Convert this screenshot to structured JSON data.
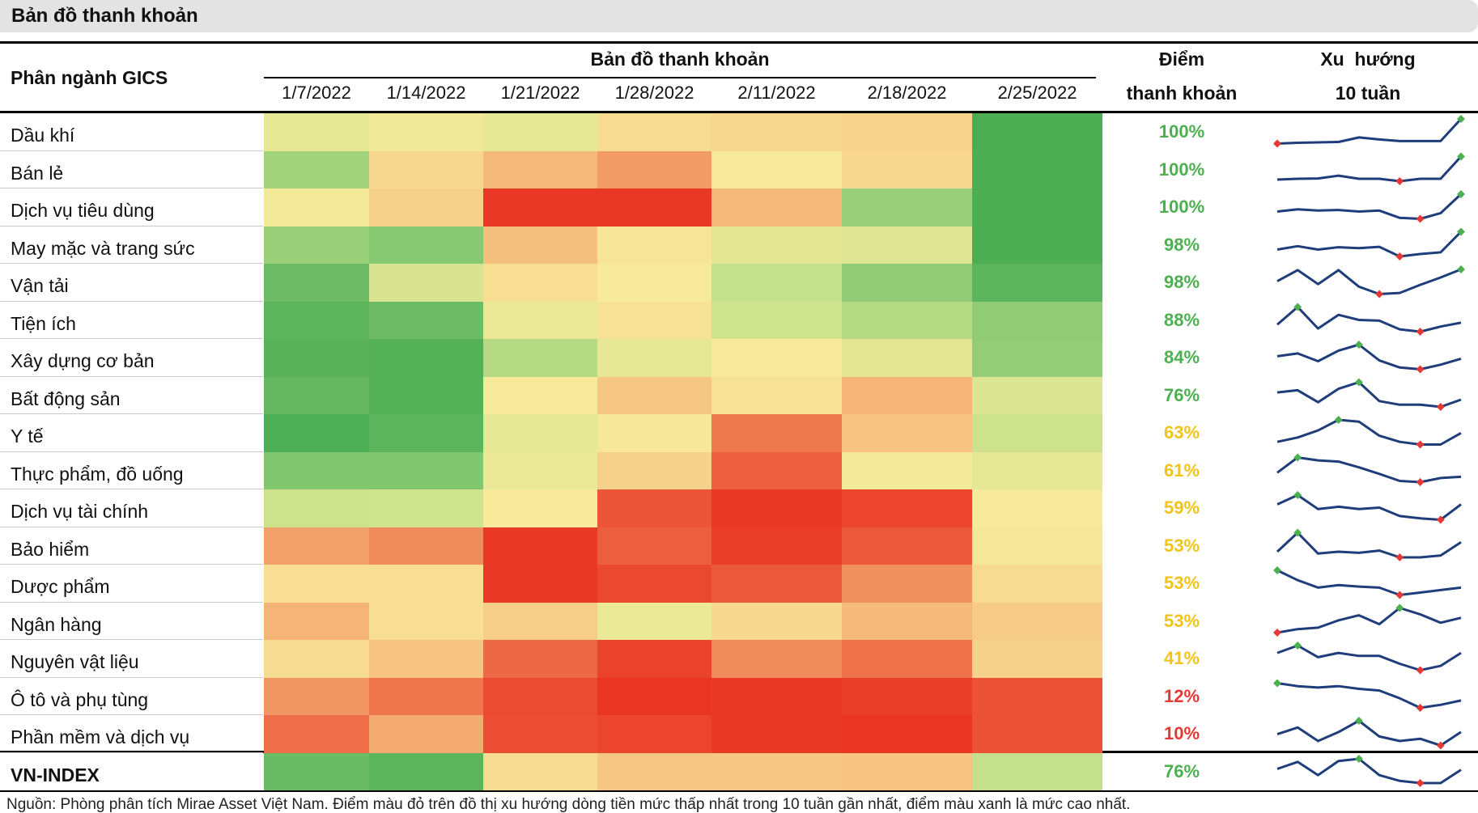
{
  "title": "Bản đồ thanh khoản",
  "headers": {
    "sector": "Phân ngành GICS",
    "heatmap": "Bản đồ thanh khoản",
    "score_line1": "Điểm",
    "score_line2": "thanh khoản",
    "trend_line1": "Xu  hướng",
    "trend_line2": "10 tuần"
  },
  "colors": {
    "score_green": "#4caf50",
    "score_yellow": "#f0c419",
    "score_red": "#e53935",
    "spark_line": "#1f3d7a",
    "min_marker": "#e53935",
    "max_marker": "#4caf50"
  },
  "source": "Nguồn: Phòng phân tích Mirae Asset Việt Nam. Điểm màu đỏ trên đồ thị xu hướng dòng tiền mức thấp nhất trong 10 tuần gần nhất, điểm màu xanh là mức cao nhất.",
  "chart_data": {
    "type": "heatmap",
    "title": "Bản đồ thanh khoản",
    "columns": [
      "1/7/2022",
      "1/14/2022",
      "1/21/2022",
      "1/28/2022",
      "2/11/2022",
      "2/18/2022",
      "2/25/2022"
    ],
    "value_scale": "0 = lowest liquidity (red), 100 = highest liquidity (green)",
    "rows": [
      {
        "label": "Dầu khí",
        "score": "100%",
        "score_color": "green",
        "values": [
          56,
          54,
          56,
          47,
          46,
          45,
          98
        ],
        "trend": [
          40,
          42,
          43,
          44,
          55,
          50,
          46,
          46,
          46,
          100
        ]
      },
      {
        "label": "Bán lẻ",
        "score": "100%",
        "score_color": "green",
        "values": [
          72,
          46,
          38,
          32,
          52,
          46,
          98
        ],
        "trend": [
          42,
          44,
          45,
          52,
          44,
          44,
          38,
          44,
          44,
          100
        ]
      },
      {
        "label": "Dịch vụ tiêu dùng",
        "score": "100%",
        "score_color": "green",
        "values": [
          53,
          44,
          5,
          5,
          38,
          74,
          98
        ],
        "trend": [
          45,
          52,
          48,
          50,
          45,
          48,
          25,
          22,
          40,
          100
        ]
      },
      {
        "label": "May mặc và trang sức",
        "score": "98%",
        "score_color": "green",
        "values": [
          74,
          78,
          39,
          50,
          57,
          58,
          98
        ],
        "trend": [
          48,
          58,
          48,
          55,
          52,
          56,
          28,
          35,
          40,
          100
        ]
      },
      {
        "label": "Vận tải",
        "score": "98%",
        "score_color": "green",
        "values": [
          86,
          60,
          48,
          52,
          65,
          76,
          92
        ],
        "trend": [
          60,
          90,
          52,
          90,
          45,
          25,
          28,
          50,
          70,
          92
        ]
      },
      {
        "label": "Tiện ích",
        "score": "88%",
        "score_color": "green",
        "values": [
          92,
          86,
          55,
          49,
          62,
          68,
          76
        ],
        "trend": [
          50,
          95,
          40,
          75,
          62,
          60,
          38,
          32,
          45,
          55
        ]
      },
      {
        "label": "Xây dựng cơ bản",
        "score": "84%",
        "score_color": "green",
        "values": [
          93,
          95,
          68,
          56,
          52,
          57,
          75
        ],
        "trend": [
          62,
          70,
          48,
          78,
          95,
          50,
          30,
          25,
          38,
          55
        ]
      },
      {
        "label": "Bất động sản",
        "score": "76%",
        "score_color": "green",
        "values": [
          89,
          95,
          52,
          41,
          49,
          37,
          59
        ],
        "trend": [
          62,
          68,
          35,
          72,
          90,
          38,
          28,
          28,
          22,
          42
        ]
      },
      {
        "label": "Y tế",
        "score": "63%",
        "score_color": "yellow",
        "values": [
          97,
          92,
          56,
          51,
          25,
          40,
          63
        ],
        "trend": [
          35,
          40,
          48,
          60,
          58,
          42,
          35,
          32,
          32,
          45
        ]
      },
      {
        "label": "Thực phẩm, đồ uống",
        "score": "61%",
        "score_color": "yellow",
        "values": [
          79,
          79,
          55,
          44,
          17,
          53,
          56
        ],
        "trend": [
          45,
          82,
          75,
          72,
          58,
          42,
          25,
          22,
          32,
          35
        ]
      },
      {
        "label": "Dịch vụ tài chính",
        "score": "59%",
        "score_color": "yellow",
        "values": [
          63,
          62,
          52,
          14,
          5,
          9,
          52
        ],
        "trend": [
          55,
          75,
          45,
          50,
          45,
          48,
          30,
          25,
          22,
          55
        ]
      },
      {
        "label": "Bảo hiểm",
        "score": "53%",
        "score_color": "yellow",
        "values": [
          33,
          29,
          5,
          17,
          7,
          15,
          51
        ],
        "trend": [
          45,
          95,
          40,
          45,
          42,
          48,
          30,
          30,
          35,
          70
        ]
      },
      {
        "label": "Dược phẩm",
        "score": "53%",
        "score_color": "yellow",
        "values": [
          48,
          48,
          5,
          10,
          15,
          30,
          47
        ],
        "trend": [
          75,
          55,
          40,
          45,
          42,
          40,
          25,
          30,
          35,
          40
        ]
      },
      {
        "label": "Ngân hàng",
        "score": "53%",
        "score_color": "yellow",
        "values": [
          37,
          48,
          43,
          55,
          46,
          38,
          42
        ],
        "trend": [
          25,
          32,
          35,
          50,
          60,
          42,
          75,
          62,
          45,
          55
        ]
      },
      {
        "label": "Nguyên vật liệu",
        "score": "41%",
        "score_color": "yellow",
        "values": [
          47,
          40,
          20,
          8,
          29,
          23,
          44
        ],
        "trend": [
          55,
          72,
          45,
          55,
          48,
          48,
          30,
          15,
          25,
          55
        ]
      },
      {
        "label": "Ô tô và phụ tùng",
        "score": "12%",
        "score_color": "red",
        "values": [
          31,
          24,
          11,
          4,
          5,
          7,
          13
        ],
        "trend": [
          75,
          68,
          65,
          68,
          62,
          58,
          40,
          18,
          25,
          35
        ]
      },
      {
        "label": "Phần mềm và dịch vụ",
        "score": "10%",
        "score_color": "red",
        "values": [
          22,
          35,
          12,
          9,
          5,
          4,
          13
        ],
        "trend": [
          45,
          60,
          30,
          50,
          75,
          40,
          30,
          35,
          20,
          50
        ]
      },
      {
        "label": "VN-INDEX",
        "score": "76%",
        "score_color": "green",
        "values": [
          87,
          92,
          47,
          41,
          41,
          40,
          65
        ],
        "trend": [
          52,
          68,
          38,
          70,
          75,
          38,
          25,
          20,
          20,
          50
        ]
      }
    ]
  }
}
